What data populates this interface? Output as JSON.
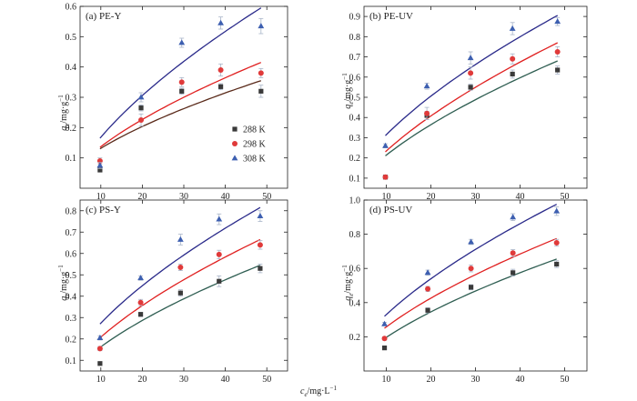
{
  "figure": {
    "x_label_main": "c",
    "x_label_sub": "e",
    "x_label_unit": "/mg·L",
    "x_label_exp": "−1",
    "y_label_main": "q",
    "y_label_sub": "e",
    "y_label_unit": "/mg·g",
    "y_label_exp": "−1"
  },
  "legend": {
    "entries": [
      {
        "label": "288 K",
        "marker": "square",
        "color": "#3a3a3a"
      },
      {
        "label": "298 K",
        "marker": "circle",
        "color": "#e03a3a"
      },
      {
        "label": "308 K",
        "marker": "triangle",
        "color": "#3d5fb0"
      }
    ]
  },
  "colors": {
    "s288_marker": "#3a3a3a",
    "s298_marker": "#e03a3a",
    "s308_marker": "#3d5fb0",
    "s288_line_a": "#5a2a1a",
    "s288_line_b": "#2f5e52",
    "s298_line": "#e02020",
    "s308_line": "#2a2a8a",
    "error_bar": "#a8b4c8"
  },
  "chart_data": [
    {
      "type": "scatter",
      "title": "(a) PE-Y",
      "xlim": [
        5,
        55
      ],
      "ylim": [
        0,
        0.6
      ],
      "xticks": [
        10,
        20,
        30,
        40,
        50
      ],
      "yticks": [
        0.1,
        0.2,
        0.3,
        0.4,
        0.5,
        0.6
      ],
      "ytick_labels": [
        "0.1",
        "0.2",
        "0.3",
        "0.4",
        "0.5",
        "0.6"
      ],
      "legend_position": "bottom-right",
      "series": [
        {
          "name": "288 K",
          "x": [
            9.8,
            19.7,
            29.5,
            38.9,
            48.6
          ],
          "y": [
            0.06,
            0.265,
            0.32,
            0.335,
            0.32
          ],
          "err": [
            0.005,
            0.01,
            0.01,
            0.01,
            0.02
          ],
          "fit_x": [
            9.8,
            48.6
          ],
          "fit_y": [
            0.13,
            0.355
          ]
        },
        {
          "name": "298 K",
          "x": [
            9.8,
            19.7,
            29.5,
            38.9,
            48.6
          ],
          "y": [
            0.09,
            0.225,
            0.35,
            0.39,
            0.38
          ],
          "err": [
            0.01,
            0.02,
            0.015,
            0.02,
            0.015
          ],
          "fit_x": [
            9.8,
            48.6
          ],
          "fit_y": [
            0.135,
            0.415
          ]
        },
        {
          "name": "308 K",
          "x": [
            9.8,
            19.7,
            29.5,
            38.9,
            48.6
          ],
          "y": [
            0.075,
            0.3,
            0.48,
            0.545,
            0.535
          ],
          "err": [
            0.01,
            0.015,
            0.015,
            0.02,
            0.025
          ],
          "fit_x": [
            9.8,
            48.6
          ],
          "fit_y": [
            0.165,
            0.595
          ]
        }
      ]
    },
    {
      "type": "scatter",
      "title": "(b) PE-UV",
      "xlim": [
        5,
        55
      ],
      "ylim": [
        0.05,
        0.95
      ],
      "xticks": [
        10,
        20,
        30,
        40,
        50
      ],
      "yticks": [
        0.1,
        0.2,
        0.3,
        0.4,
        0.5,
        0.6,
        0.7,
        0.8,
        0.9
      ],
      "ytick_labels": [
        "0.1",
        "0.2",
        "0.3",
        "0.4",
        "0.5",
        "0.6",
        "0.7",
        "0.8",
        "0.9"
      ],
      "series": [
        {
          "name": "288 K",
          "x": [
            9.8,
            19.1,
            28.9,
            38.3,
            48.4
          ],
          "y": [
            0.105,
            0.41,
            0.55,
            0.615,
            0.635
          ],
          "err": [
            0.005,
            0.02,
            0.015,
            0.02,
            0.02
          ],
          "fit_x": [
            9.8,
            48.4
          ],
          "fit_y": [
            0.21,
            0.68
          ]
        },
        {
          "name": "298 K",
          "x": [
            9.8,
            19.1,
            28.9,
            38.3,
            48.4
          ],
          "y": [
            0.105,
            0.42,
            0.62,
            0.69,
            0.725
          ],
          "err": [
            0.005,
            0.03,
            0.03,
            0.025,
            0.025
          ],
          "fit_x": [
            9.8,
            48.4
          ],
          "fit_y": [
            0.23,
            0.77
          ]
        },
        {
          "name": "308 K",
          "x": [
            9.8,
            19.1,
            28.9,
            38.3,
            48.4
          ],
          "y": [
            0.26,
            0.555,
            0.695,
            0.84,
            0.875
          ],
          "err": [
            0.01,
            0.015,
            0.03,
            0.03,
            0.02
          ],
          "fit_x": [
            9.8,
            48.4
          ],
          "fit_y": [
            0.31,
            0.905
          ]
        }
      ]
    },
    {
      "type": "scatter",
      "title": "(c) PS-Y",
      "xlim": [
        5,
        55
      ],
      "ylim": [
        0.05,
        0.85
      ],
      "xticks": [
        10,
        20,
        30,
        40,
        50
      ],
      "yticks": [
        0.1,
        0.2,
        0.3,
        0.4,
        0.5,
        0.6,
        0.7,
        0.8
      ],
      "ytick_labels": [
        "0.1",
        "0.2",
        "0.3",
        "0.4",
        "0.5",
        "0.6",
        "0.7",
        "0.8"
      ],
      "series": [
        {
          "name": "288 K",
          "x": [
            9.8,
            19.6,
            29.2,
            38.5,
            48.4
          ],
          "y": [
            0.085,
            0.315,
            0.415,
            0.47,
            0.53
          ],
          "err": [
            0.005,
            0.01,
            0.015,
            0.025,
            0.02
          ],
          "fit_x": [
            9.8,
            48.4
          ],
          "fit_y": [
            0.16,
            0.545
          ]
        },
        {
          "name": "298 K",
          "x": [
            9.8,
            19.6,
            29.2,
            38.5,
            48.4
          ],
          "y": [
            0.155,
            0.37,
            0.535,
            0.595,
            0.64
          ],
          "err": [
            0.01,
            0.015,
            0.015,
            0.02,
            0.02
          ],
          "fit_x": [
            9.8,
            48.4
          ],
          "fit_y": [
            0.205,
            0.665
          ]
        },
        {
          "name": "308 K",
          "x": [
            9.8,
            19.6,
            29.2,
            38.5,
            48.4
          ],
          "y": [
            0.205,
            0.485,
            0.665,
            0.76,
            0.775
          ],
          "err": [
            0.01,
            0.01,
            0.025,
            0.025,
            0.025
          ],
          "fit_x": [
            9.8,
            48.4
          ],
          "fit_y": [
            0.27,
            0.815
          ]
        }
      ]
    },
    {
      "type": "scatter",
      "title": "(d) PS-UV",
      "xlim": [
        5,
        55
      ],
      "ylim": [
        0,
        1.0
      ],
      "xticks": [
        10,
        20,
        30,
        40,
        50
      ],
      "yticks": [
        0.2,
        0.4,
        0.6,
        0.8,
        1.0
      ],
      "ytick_labels": [
        "0.2",
        "0.4",
        "0.6",
        "0.8",
        "1.0"
      ],
      "series": [
        {
          "name": "288 K",
          "x": [
            9.6,
            19.3,
            29.0,
            38.4,
            48.2
          ],
          "y": [
            0.135,
            0.355,
            0.49,
            0.575,
            0.625
          ],
          "err": [
            0.01,
            0.015,
            0.015,
            0.02,
            0.02
          ],
          "fit_x": [
            9.6,
            48.2
          ],
          "fit_y": [
            0.19,
            0.655
          ]
        },
        {
          "name": "298 K",
          "x": [
            9.6,
            19.3,
            29.0,
            38.4,
            48.2
          ],
          "y": [
            0.19,
            0.48,
            0.6,
            0.69,
            0.75
          ],
          "err": [
            0.01,
            0.015,
            0.02,
            0.02,
            0.02
          ],
          "fit_x": [
            9.6,
            48.2
          ],
          "fit_y": [
            0.25,
            0.775
          ]
        },
        {
          "name": "308 K",
          "x": [
            9.6,
            19.3,
            29.0,
            38.4,
            48.2
          ],
          "y": [
            0.275,
            0.575,
            0.755,
            0.9,
            0.935
          ],
          "err": [
            0.01,
            0.015,
            0.015,
            0.02,
            0.025
          ],
          "fit_x": [
            9.6,
            48.2
          ],
          "fit_y": [
            0.32,
            0.975
          ]
        }
      ]
    }
  ]
}
